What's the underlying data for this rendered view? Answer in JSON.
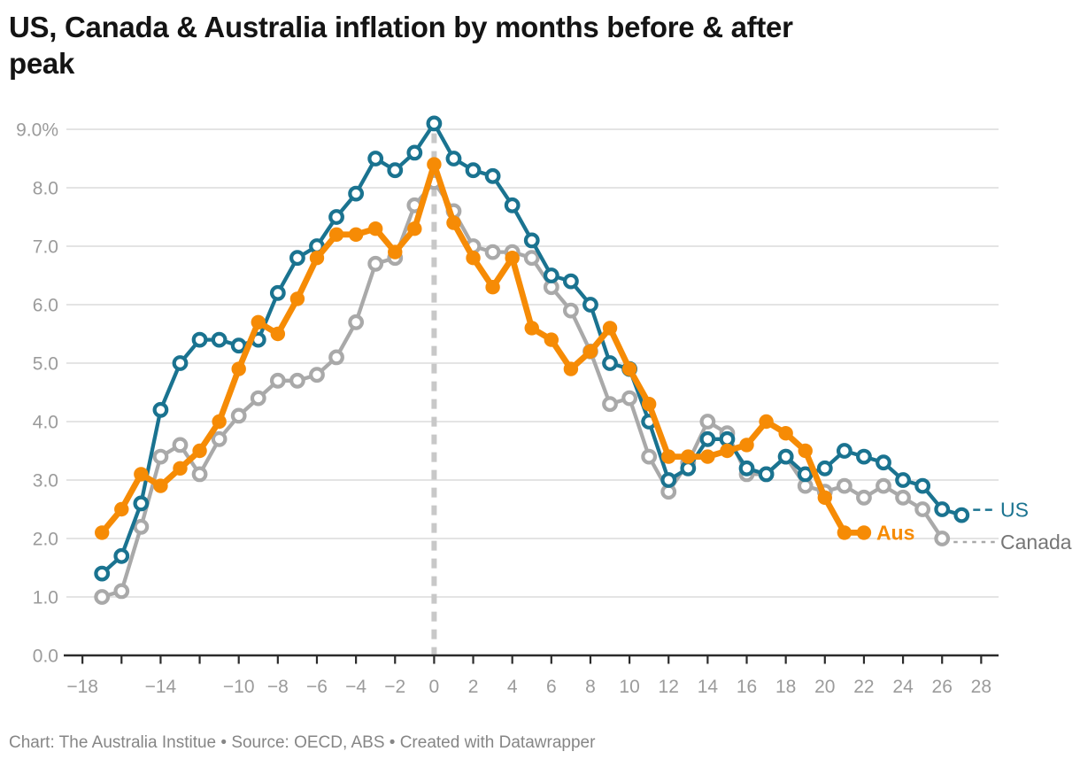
{
  "header": {
    "title_line1": "US, Canada & Australia inflation by months before & after",
    "title_line2": "peak"
  },
  "footer": {
    "text": "Chart: The Australia Institue • Source: OECD, ABS • Created with Datawrapper"
  },
  "colors": {
    "background": "#ffffff",
    "title_text": "#141414",
    "footer_text": "#868686",
    "gridline": "#E4E4E4",
    "axis_line": "#2B2B2B",
    "tick_text": "#9B9B9B",
    "peak_dashed_line": "#C8C8C8",
    "us": "#1A7390",
    "canada": "#A9A9A9",
    "canada_label": "#767676",
    "aus": "#F68B05"
  },
  "chart_data": {
    "type": "line",
    "title": "US, Canada & Australia inflation by months before & after peak",
    "xlabel": "",
    "ylabel": "",
    "xlim": [
      -19,
      29
    ],
    "ylim": [
      0,
      9
    ],
    "grid": "horizontal",
    "legend_position": "end-of-line-labels",
    "peak_line_month": 0,
    "x_ticks": [
      -18,
      -16,
      -14,
      -12,
      -10,
      -8,
      -6,
      -4,
      -2,
      0,
      2,
      4,
      6,
      8,
      10,
      12,
      14,
      16,
      18,
      20,
      22,
      24,
      26,
      28
    ],
    "x_tick_labels": [
      {
        "month": -18,
        "label": "−18"
      },
      {
        "month": -14,
        "label": "−14"
      },
      {
        "month": -10,
        "label": "−10"
      },
      {
        "month": -8,
        "label": "−8"
      },
      {
        "month": -6,
        "label": "−6"
      },
      {
        "month": -4,
        "label": "−4"
      },
      {
        "month": -2,
        "label": "−2"
      },
      {
        "month": 0,
        "label": "0"
      },
      {
        "month": 2,
        "label": "2"
      },
      {
        "month": 4,
        "label": "4"
      },
      {
        "month": 6,
        "label": "6"
      },
      {
        "month": 8,
        "label": "8"
      },
      {
        "month": 10,
        "label": "10"
      },
      {
        "month": 12,
        "label": "12"
      },
      {
        "month": 14,
        "label": "14"
      },
      {
        "month": 16,
        "label": "16"
      },
      {
        "month": 18,
        "label": "18"
      },
      {
        "month": 20,
        "label": "20"
      },
      {
        "month": 22,
        "label": "22"
      },
      {
        "month": 24,
        "label": "24"
      },
      {
        "month": 26,
        "label": "26"
      },
      {
        "month": 28,
        "label": "28"
      }
    ],
    "y_ticks": [
      {
        "value": 9,
        "label": "9.0%"
      },
      {
        "value": 8,
        "label": "8.0"
      },
      {
        "value": 7,
        "label": "7.0"
      },
      {
        "value": 6,
        "label": "6.0"
      },
      {
        "value": 5,
        "label": "5.0"
      },
      {
        "value": 4,
        "label": "4.0"
      },
      {
        "value": 3,
        "label": "3.0"
      },
      {
        "value": 2,
        "label": "2.0"
      },
      {
        "value": 1,
        "label": "1.0"
      },
      {
        "value": 0,
        "label": "0.0"
      }
    ],
    "series": [
      {
        "name": "US",
        "label": "US",
        "color": "#1A7390",
        "label_color": "#1A7390",
        "label_bold": false,
        "marker": "open",
        "end_connector": "dashed",
        "start_month": -17,
        "values": [
          1.4,
          1.7,
          2.6,
          4.2,
          5.0,
          5.4,
          5.4,
          5.3,
          5.4,
          6.2,
          6.8,
          7.0,
          7.5,
          7.9,
          8.5,
          8.3,
          8.6,
          9.1,
          8.5,
          8.3,
          8.2,
          7.7,
          7.1,
          6.5,
          6.4,
          6.0,
          5.0,
          4.9,
          4.0,
          3.0,
          3.2,
          3.7,
          3.7,
          3.2,
          3.1,
          3.4,
          3.1,
          3.2,
          3.5,
          3.4,
          3.3,
          3.0,
          2.9,
          2.5,
          2.4
        ]
      },
      {
        "name": "Canada",
        "label": "Canada",
        "color": "#A9A9A9",
        "label_color": "#767676",
        "label_bold": false,
        "marker": "open",
        "end_connector": "dotted",
        "start_month": -17,
        "values": [
          1.0,
          1.1,
          2.2,
          3.4,
          3.6,
          3.1,
          3.7,
          4.1,
          4.4,
          4.7,
          4.7,
          4.8,
          5.1,
          5.7,
          6.7,
          6.8,
          7.7,
          8.1,
          7.6,
          7.0,
          6.9,
          6.9,
          6.8,
          6.3,
          5.9,
          5.2,
          4.3,
          4.4,
          3.4,
          2.8,
          3.3,
          4.0,
          3.8,
          3.1,
          3.1,
          3.4,
          2.9,
          2.8,
          2.9,
          2.7,
          2.9,
          2.7,
          2.5,
          2.0
        ]
      },
      {
        "name": "Aus",
        "label": "Aus",
        "color": "#F68B05",
        "label_color": "#F68B05",
        "label_bold": true,
        "marker": "filled",
        "end_connector": "none",
        "start_month": -17,
        "values": [
          2.1,
          2.5,
          3.1,
          2.9,
          3.2,
          3.5,
          4.0,
          4.9,
          5.7,
          5.5,
          6.1,
          6.8,
          7.2,
          7.2,
          7.3,
          6.9,
          7.3,
          8.4,
          7.4,
          6.8,
          6.3,
          6.8,
          5.6,
          5.4,
          4.9,
          5.2,
          5.6,
          4.9,
          4.3,
          3.4,
          3.4,
          3.4,
          3.5,
          3.6,
          4.0,
          3.8,
          3.5,
          2.7,
          2.1,
          2.1
        ]
      }
    ]
  }
}
